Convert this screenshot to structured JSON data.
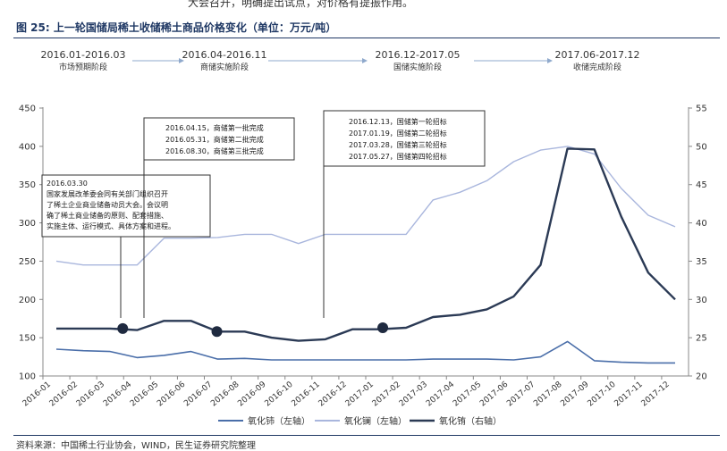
{
  "page": {
    "top_cut_text": "大会召开，明确提出试点，对价格有提振作用。",
    "figure_title": "图 25:  上一轮国储局稀土收储稀土商品价格变化（单位：万元/吨）",
    "source_text": "资料来源：中国稀土行业协会，WIND，民生证券研究院整理"
  },
  "colors": {
    "title": "#1f3864",
    "series_ce": "#4a6ea9",
    "series_la": "#a9b6dd",
    "series_eu": "#2b3a55",
    "arrow": "#8fa9cc",
    "marker": "#1f2a40"
  },
  "phases": [
    {
      "range": "2016.01-2016.03",
      "label": "市场预期阶段"
    },
    {
      "range": "2016.04-2016.11",
      "label": "商储实施阶段"
    },
    {
      "range": "2016.12-2017.05",
      "label": "国储实施阶段"
    },
    {
      "range": "2017.06-2017.12",
      "label": "收储完成阶段"
    }
  ],
  "annotations": [
    {
      "lines": [
        "2016.03.30",
        "国家发展改革委会同有关部门组织召开",
        "了稀土企业商业储备动员大会。会议明",
        "确了稀土商业储备的原则、配套措施、",
        "实施主体、运行模式、具体方案和进程。"
      ]
    },
    {
      "lines": [
        "2016.04.15，商储第一批完成",
        "2016.05.31，商储第二批完成",
        "2016.08.30，商储第三批完成"
      ]
    },
    {
      "lines": [
        "2016.12.13，国储第一轮招标",
        "2017.01.19，国储第二轮招标",
        "2017.03.28，国储第三轮招标",
        "2017.05.27，国储第四轮招标"
      ]
    }
  ],
  "chart_data": {
    "type": "line",
    "categories": [
      "2016-01",
      "2016-02",
      "2016-03",
      "2016-04",
      "2016-05",
      "2016-06",
      "2016-07",
      "2016-08",
      "2016-09",
      "2016-10",
      "2016-11",
      "2016-12",
      "2017-01",
      "2017-02",
      "2017-03",
      "2017-04",
      "2017-05",
      "2017-06",
      "2017-07",
      "2017-08",
      "2017-09",
      "2017-10",
      "2017-11",
      "2017-12"
    ],
    "y_left": {
      "ylim": [
        100,
        450
      ],
      "ticks": [
        "100",
        "150",
        "200",
        "250",
        "300",
        "350",
        "400",
        "450"
      ]
    },
    "y_right": {
      "ylim": [
        20,
        55
      ],
      "ticks": [
        "20",
        "25",
        "30",
        "35",
        "40",
        "45",
        "50",
        "55"
      ]
    },
    "grid": false,
    "legend_position": "bottom",
    "series": [
      {
        "name": "氧化铈（左轴）",
        "axis": "left",
        "values": [
          135,
          133,
          132,
          124,
          127,
          132,
          122,
          123,
          121,
          121,
          121,
          121,
          121,
          121,
          122,
          122,
          122,
          121,
          125,
          145,
          120,
          118,
          117,
          117
        ]
      },
      {
        "name": "氧化镧（左轴）",
        "axis": "left",
        "values": [
          250,
          245,
          245,
          245,
          280,
          280,
          281,
          285,
          285,
          273,
          285,
          285,
          285,
          285,
          330,
          340,
          355,
          380,
          395,
          400,
          390,
          345,
          310,
          295
        ]
      },
      {
        "name": "氧化铕（右轴）",
        "axis": "right",
        "values": [
          26.2,
          26.2,
          26.2,
          26.0,
          27.2,
          27.2,
          25.8,
          25.8,
          25.0,
          24.6,
          24.8,
          26.1,
          26.1,
          26.3,
          27.7,
          28.0,
          28.7,
          30.4,
          34.5,
          49.7,
          49.6,
          40.8,
          33.5,
          30.0
        ]
      }
    ],
    "event_markers": [
      {
        "x": "2016-03-30",
        "value": 26.2,
        "axis": "right"
      },
      {
        "x": "2016-07-15",
        "value": 25.8,
        "axis": "right"
      },
      {
        "x": "2017-01-20",
        "value": 26.3,
        "axis": "right"
      }
    ]
  }
}
